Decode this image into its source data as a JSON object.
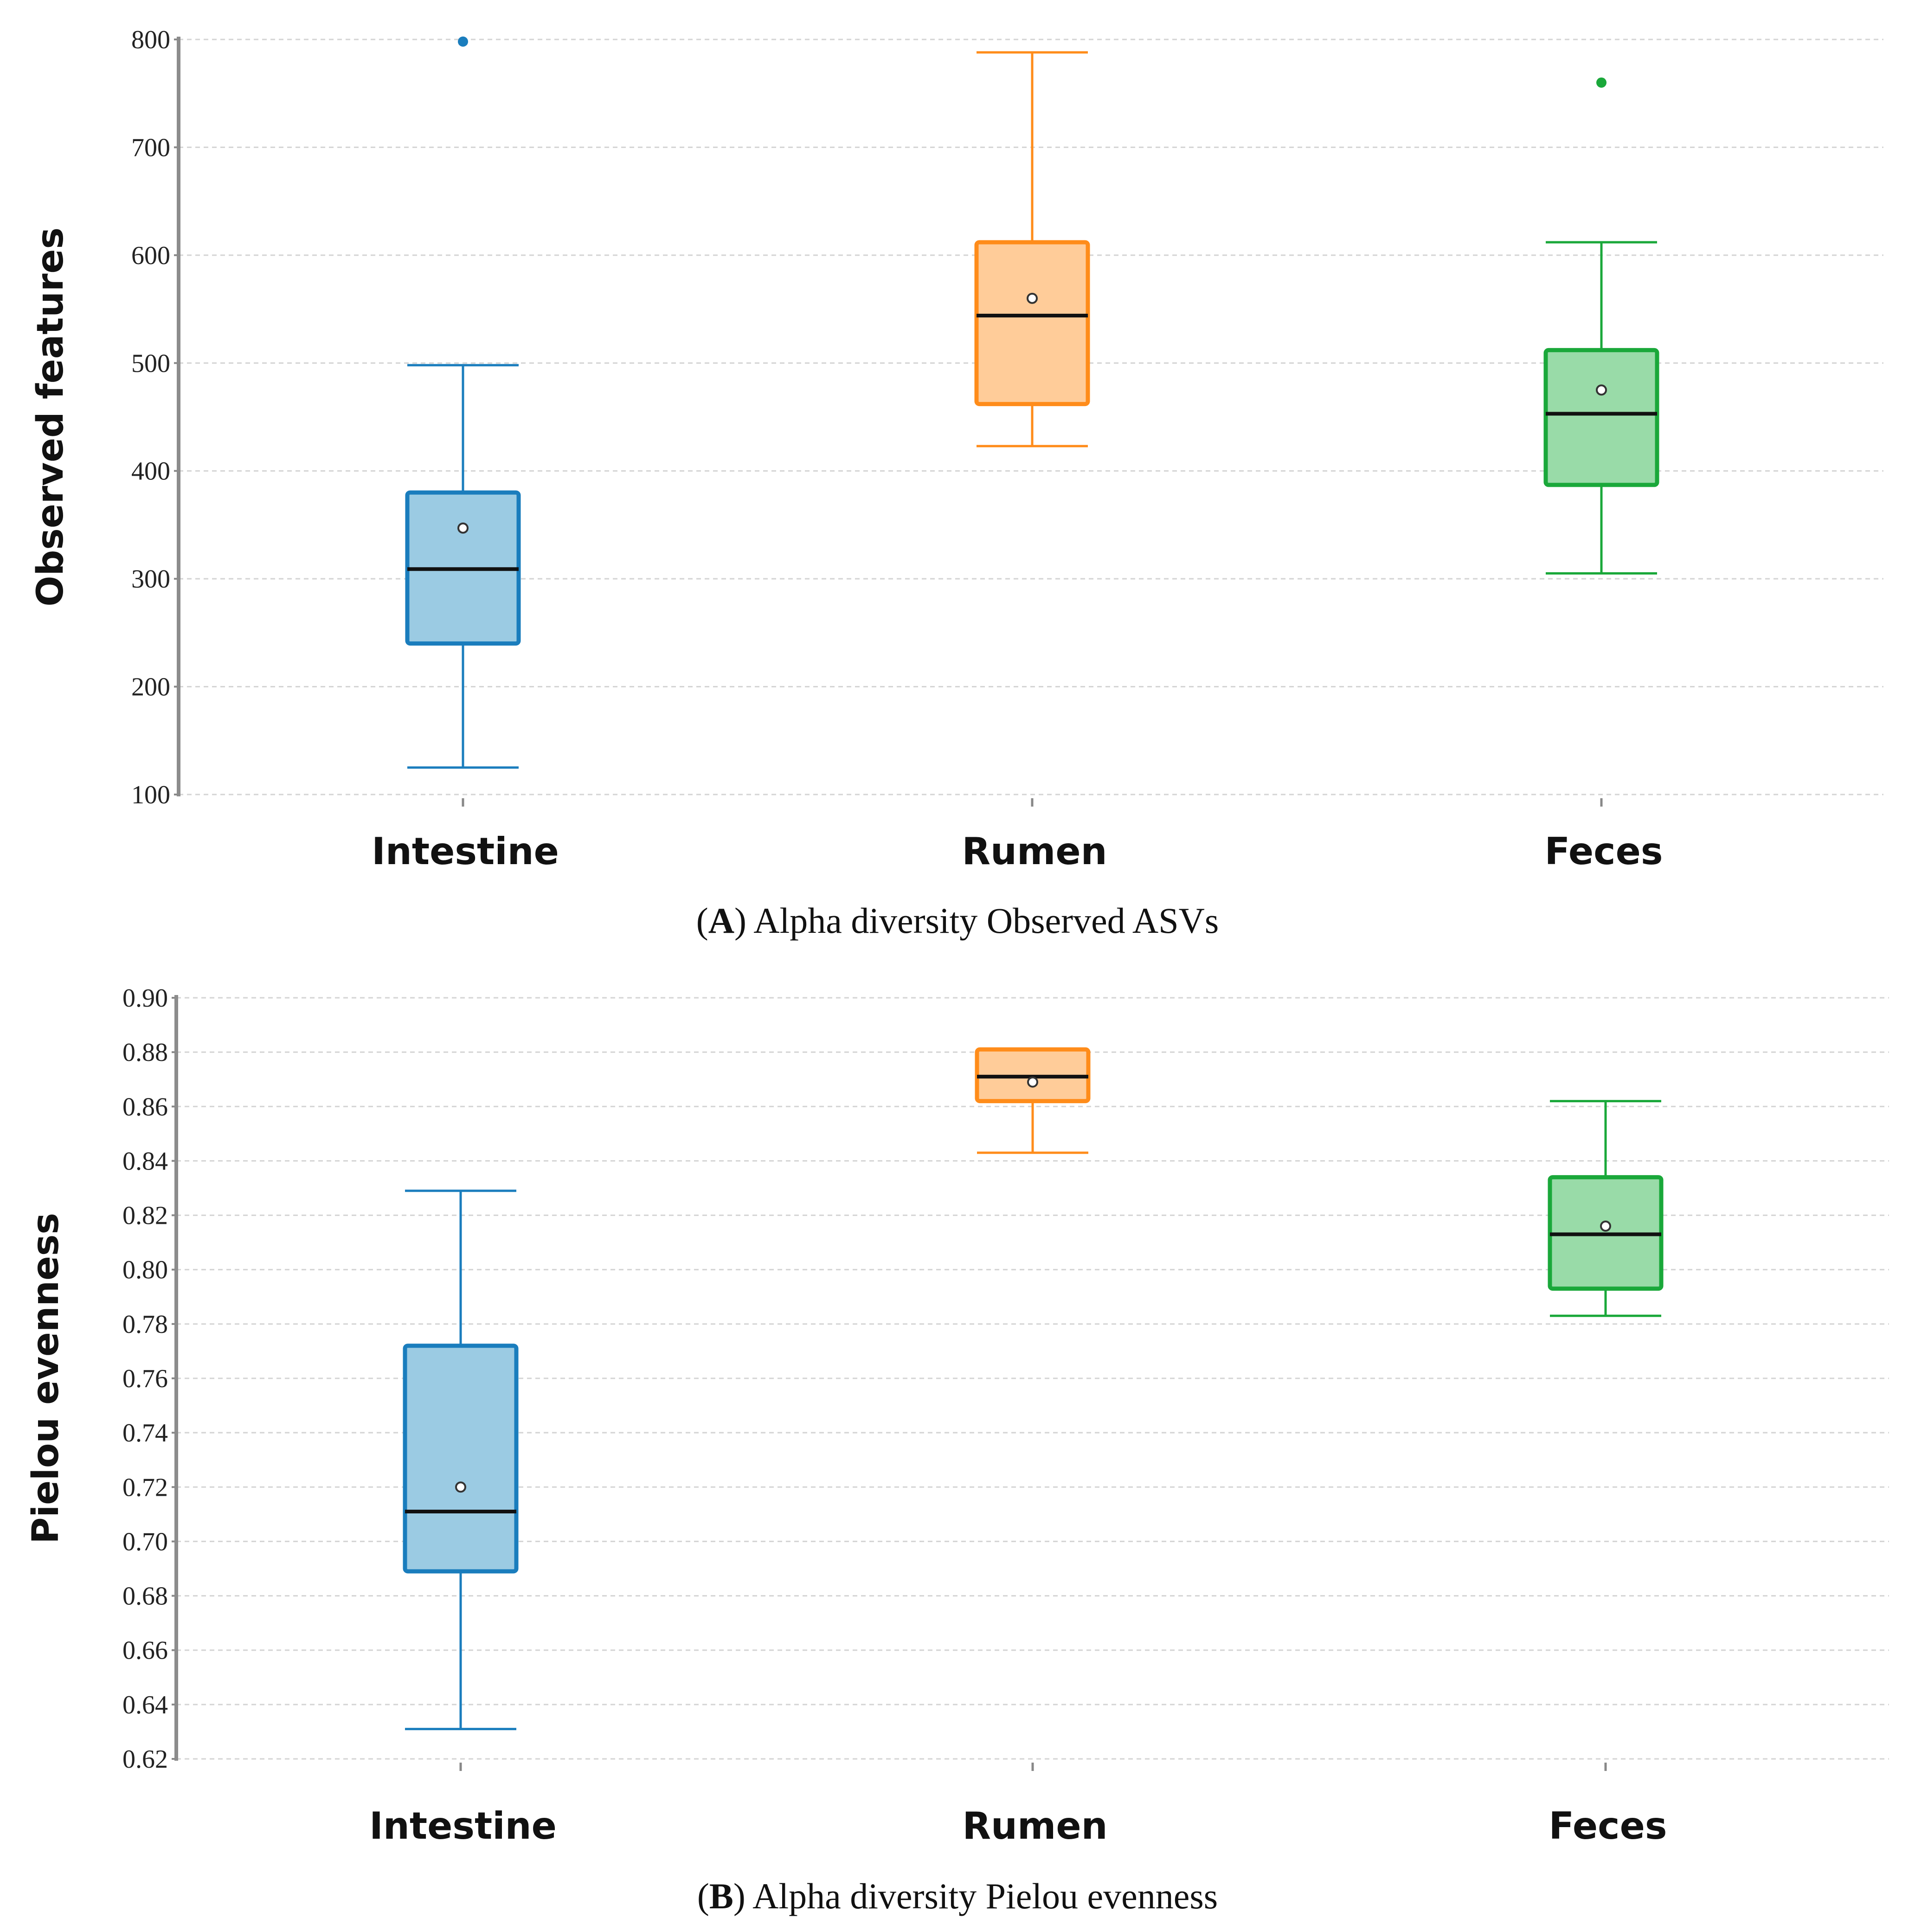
{
  "chart_data": [
    {
      "type": "box",
      "panel": "A",
      "caption_letter": "A",
      "caption_prefix": "(",
      "caption_suffix": ") Alpha diversity Observed ASVs",
      "ylabel": "Observed features",
      "ylim": [
        100,
        800
      ],
      "yticks": [
        100,
        200,
        300,
        400,
        500,
        600,
        700,
        800
      ],
      "tick_decimals": 0,
      "grid": true,
      "categories": [
        "Intestine",
        "Rumen",
        "Feces"
      ],
      "series": [
        {
          "name": "Intestine",
          "color": "#1a7dbd",
          "fill": "#9bcbe3",
          "whisker_low": 125,
          "q1": 240,
          "median": 309,
          "q3": 380,
          "whisker_high": 498,
          "mean": 347,
          "outliers": [
            798
          ]
        },
        {
          "name": "Rumen",
          "color": "#ff8c1a",
          "fill": "#ffcc99",
          "whisker_low": 423,
          "q1": 462,
          "median": 544,
          "q3": 612,
          "whisker_high": 788,
          "mean": 560,
          "outliers": []
        },
        {
          "name": "Feces",
          "color": "#1aa83a",
          "fill": "#99dba8",
          "whisker_low": 305,
          "q1": 387,
          "median": 453,
          "q3": 512,
          "whisker_high": 612,
          "mean": 475,
          "outliers": [
            760
          ]
        }
      ]
    },
    {
      "type": "box",
      "panel": "B",
      "caption_letter": "B",
      "caption_prefix": "(",
      "caption_suffix": ") Alpha diversity Pielou evenness",
      "ylabel": "Pielou evenness",
      "ylim": [
        0.62,
        0.9
      ],
      "yticks": [
        0.62,
        0.64,
        0.66,
        0.68,
        0.7,
        0.72,
        0.74,
        0.76,
        0.78,
        0.8,
        0.82,
        0.84,
        0.86,
        0.88,
        0.9
      ],
      "tick_decimals": 2,
      "grid": true,
      "categories": [
        "Intestine",
        "Rumen",
        "Feces"
      ],
      "series": [
        {
          "name": "Intestine",
          "color": "#1a7dbd",
          "fill": "#9bcbe3",
          "whisker_low": 0.631,
          "q1": 0.689,
          "median": 0.711,
          "q3": 0.772,
          "whisker_high": 0.829,
          "mean": 0.72,
          "outliers": []
        },
        {
          "name": "Rumen",
          "color": "#ff8c1a",
          "fill": "#ffcc99",
          "whisker_low": 0.843,
          "q1": 0.862,
          "median": 0.871,
          "q3": 0.881,
          "whisker_high": 0.881,
          "mean": 0.869,
          "outliers": []
        },
        {
          "name": "Feces",
          "color": "#1aa83a",
          "fill": "#99dba8",
          "whisker_low": 0.783,
          "q1": 0.793,
          "median": 0.813,
          "q3": 0.834,
          "whisker_high": 0.862,
          "mean": 0.816,
          "outliers": []
        }
      ]
    }
  ]
}
